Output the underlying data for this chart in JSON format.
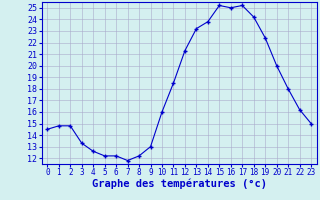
{
  "hours": [
    0,
    1,
    2,
    3,
    4,
    5,
    6,
    7,
    8,
    9,
    10,
    11,
    12,
    13,
    14,
    15,
    16,
    17,
    18,
    19,
    20,
    21,
    22,
    23
  ],
  "temperatures": [
    14.5,
    14.8,
    14.8,
    13.3,
    12.6,
    12.2,
    12.2,
    11.8,
    12.2,
    13.0,
    16.0,
    18.5,
    21.3,
    23.2,
    23.8,
    25.2,
    25.0,
    25.2,
    24.2,
    22.4,
    20.0,
    18.0,
    16.2,
    15.0
  ],
  "xlabel": "Graphe des températures (°c)",
  "ylim": [
    11.5,
    25.5
  ],
  "xlim": [
    -0.5,
    23.5
  ],
  "yticks": [
    12,
    13,
    14,
    15,
    16,
    17,
    18,
    19,
    20,
    21,
    22,
    23,
    24,
    25
  ],
  "xticks": [
    0,
    1,
    2,
    3,
    4,
    5,
    6,
    7,
    8,
    9,
    10,
    11,
    12,
    13,
    14,
    15,
    16,
    17,
    18,
    19,
    20,
    21,
    22,
    23
  ],
  "line_color": "#0000cc",
  "marker": "+",
  "bg_color": "#d4f0f0",
  "grid_color": "#aaaacc",
  "axis_label_color": "#0000cc",
  "tick_label_color": "#0000cc",
  "xlabel_fontsize": 7.5,
  "ytick_fontsize": 6.0,
  "xtick_fontsize": 5.5,
  "xlabel_bold": true
}
